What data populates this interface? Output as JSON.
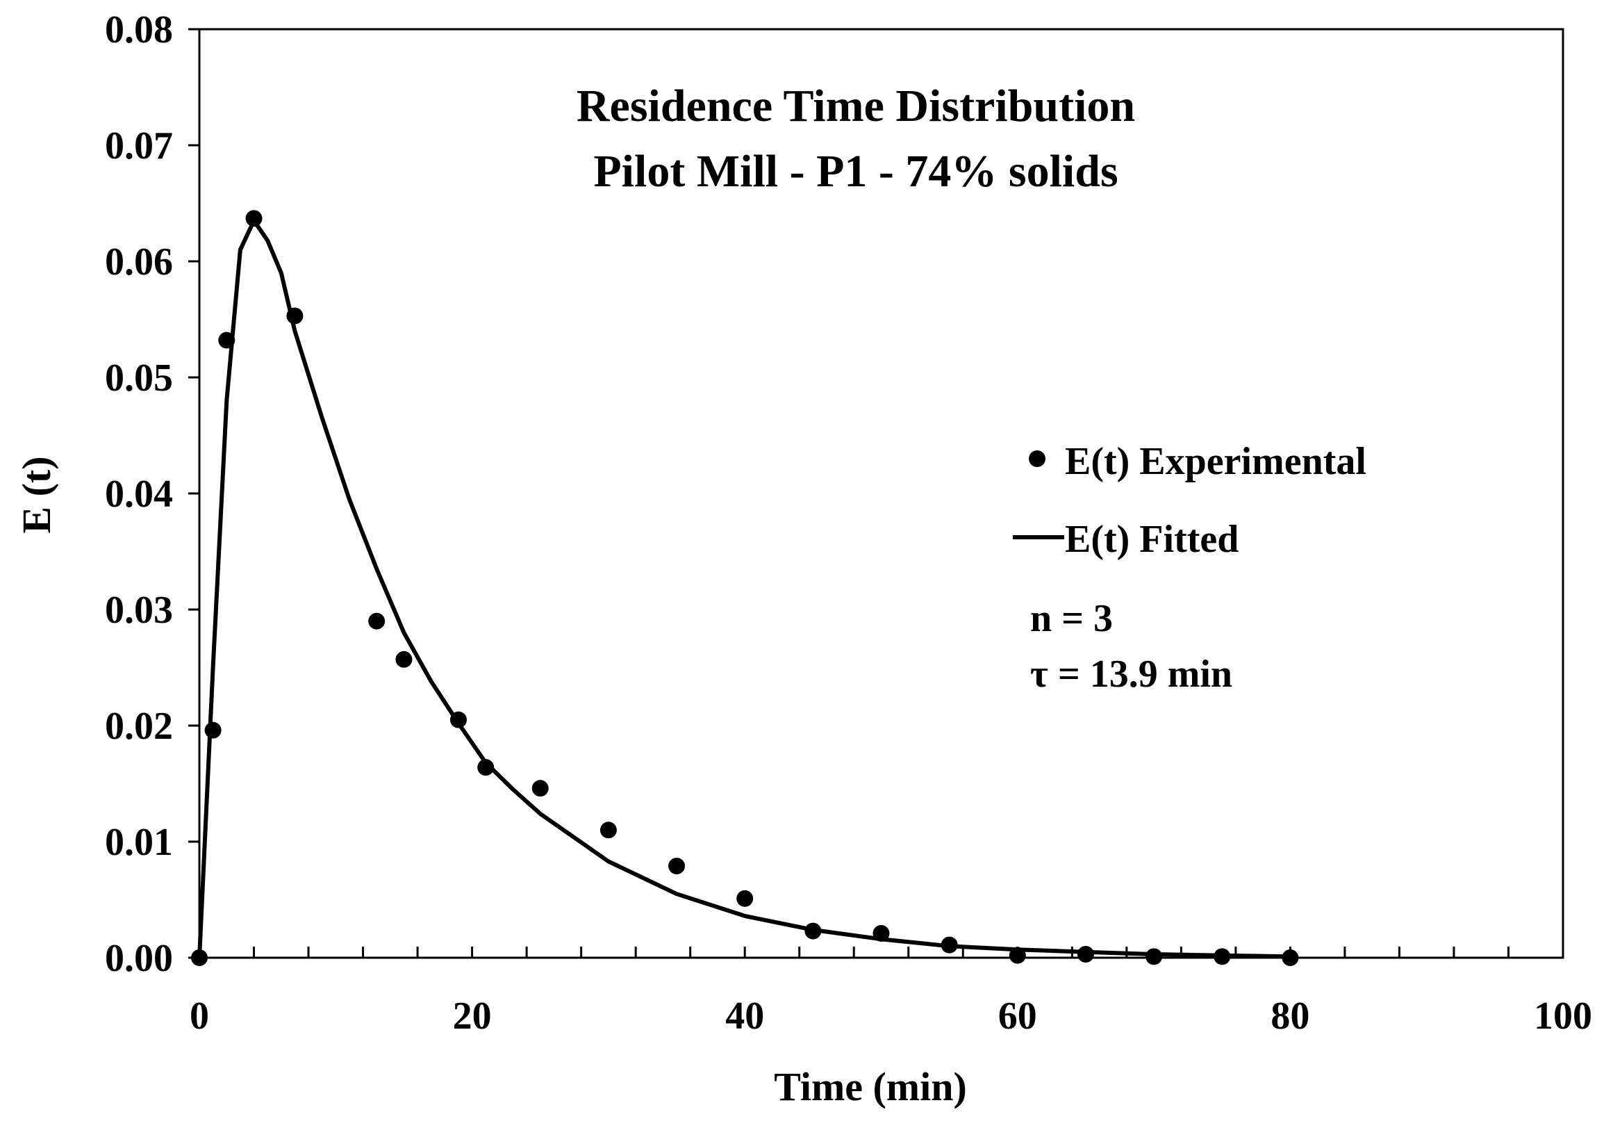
{
  "chart_data": {
    "type": "scatter",
    "title": [
      "Residence Time Distribution",
      "Pilot Mill - P1 - 74% solids"
    ],
    "xlabel": "Time (min)",
    "ylabel": "E (t)",
    "xlim": [
      0,
      100
    ],
    "ylim": [
      0,
      0.08
    ],
    "x_ticks": [
      0,
      20,
      40,
      60,
      80,
      100
    ],
    "x_tick_labels": [
      "0",
      "20",
      "40",
      "60",
      "80",
      "100"
    ],
    "y_ticks": [
      0,
      0.01,
      0.02,
      0.03,
      0.04,
      0.05,
      0.06,
      0.07,
      0.08
    ],
    "y_tick_labels": [
      "0.00",
      "0.01",
      "0.02",
      "0.03",
      "0.04",
      "0.05",
      "0.06",
      "0.07",
      "0.08"
    ],
    "x_minor_step": 4,
    "y_minor_step": 0.01,
    "grid": false,
    "legend_position": "right",
    "series": [
      {
        "name": "E(t) Experimental",
        "kind": "points",
        "x": [
          0,
          1,
          2,
          4,
          7,
          13,
          15,
          19,
          21,
          25,
          30,
          35,
          40,
          45,
          50,
          55,
          60,
          65,
          70,
          75,
          80
        ],
        "y": [
          0.0,
          0.0196,
          0.0532,
          0.0637,
          0.0553,
          0.029,
          0.0257,
          0.0205,
          0.0164,
          0.0146,
          0.011,
          0.0079,
          0.0051,
          0.0023,
          0.0021,
          0.0011,
          0.0002,
          0.0003,
          0.0001,
          0.0001,
          0.0
        ]
      },
      {
        "name": "E(t) Fitted",
        "kind": "line",
        "x": [
          0,
          1,
          2,
          3,
          4,
          5,
          6,
          7,
          9,
          11,
          13,
          15,
          17,
          19,
          21,
          23,
          25,
          30,
          35,
          40,
          45,
          50,
          55,
          60,
          65,
          70,
          75,
          80
        ],
        "y": [
          0.0,
          0.025,
          0.048,
          0.061,
          0.0635,
          0.0618,
          0.059,
          0.054,
          0.0465,
          0.0395,
          0.0335,
          0.028,
          0.0238,
          0.0202,
          0.0168,
          0.0145,
          0.0124,
          0.0083,
          0.0055,
          0.0036,
          0.0024,
          0.0016,
          0.001,
          0.0007,
          0.0005,
          0.0003,
          0.0002,
          0.0001
        ]
      }
    ],
    "annotations": [
      "n = 3",
      "τ = 13.9 min"
    ]
  }
}
